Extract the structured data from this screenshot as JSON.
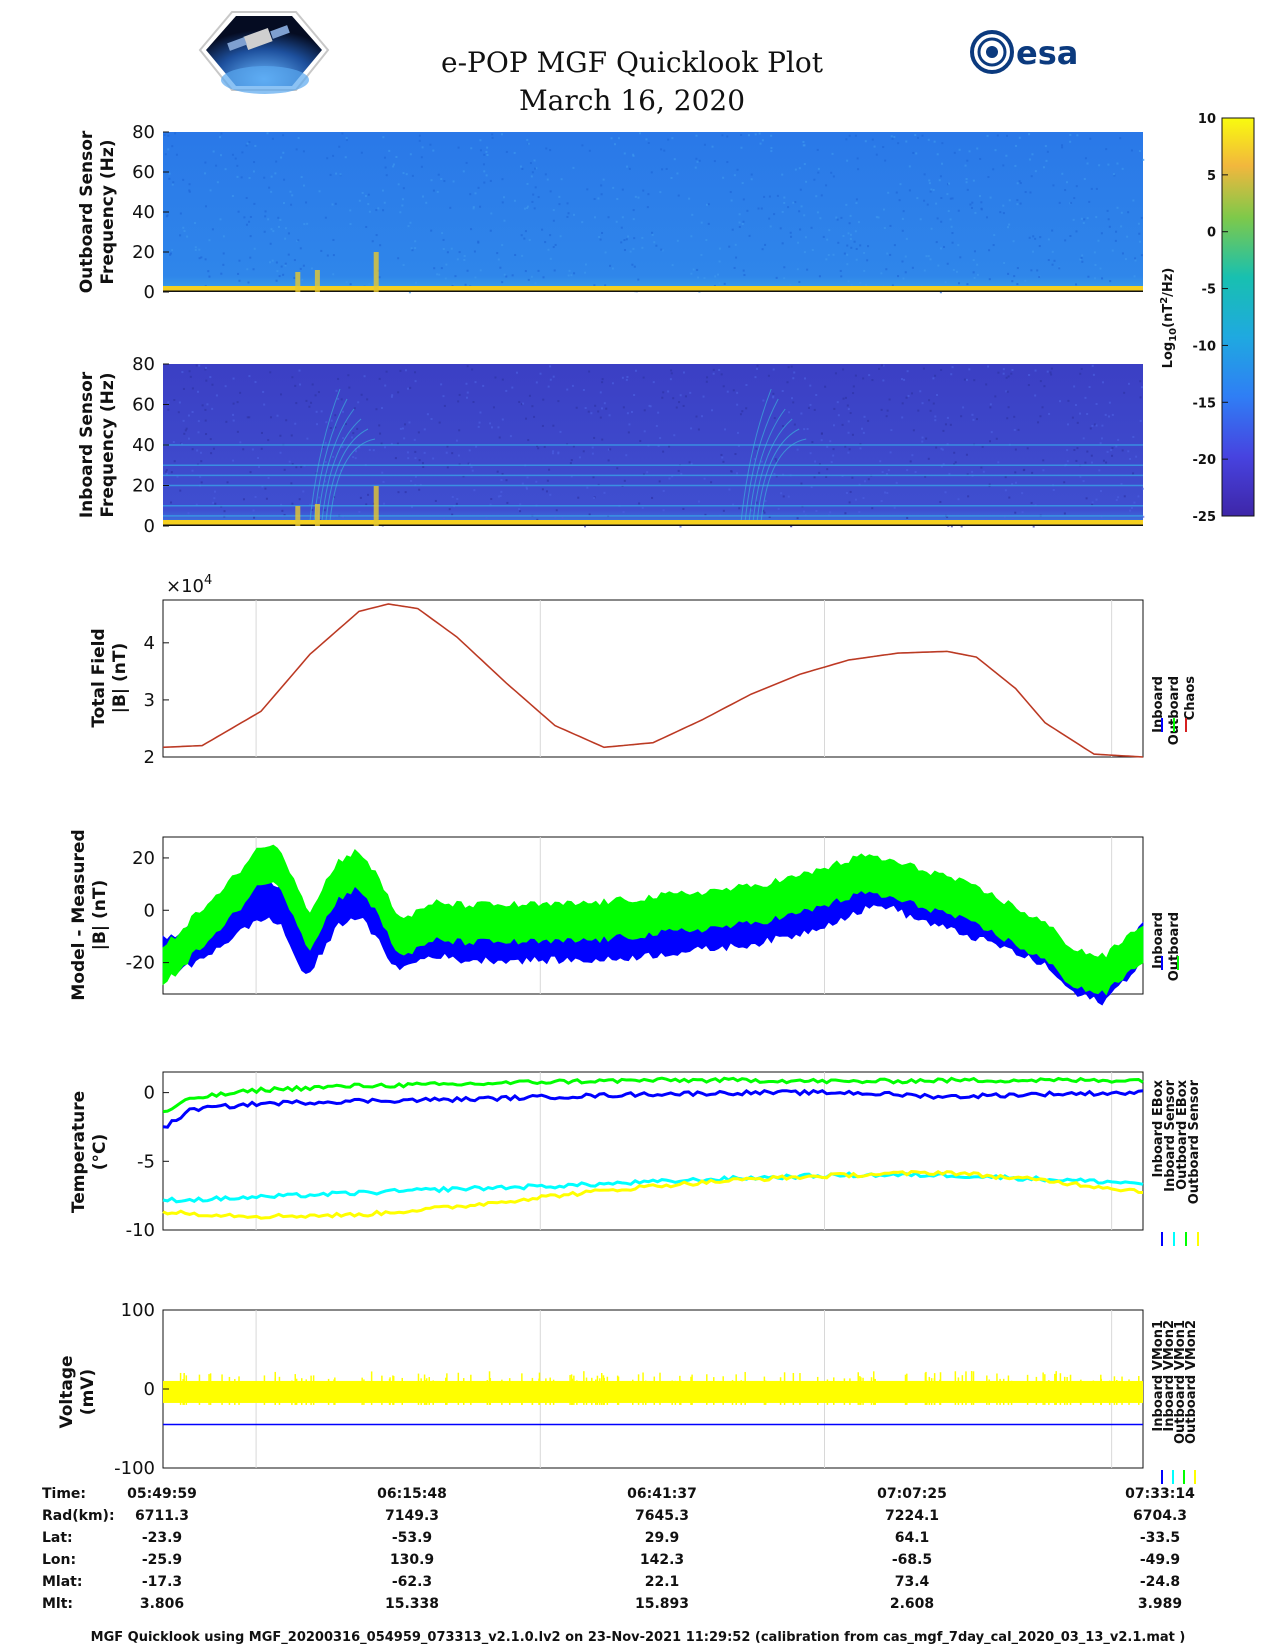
{
  "header": {
    "title": "e-POP MGF Quicklook Plot",
    "date": "March 16, 2020",
    "left_logo_icon": "satellite-logo-icon",
    "right_logo_icon": "esa-logo-icon",
    "right_logo_text": "esa"
  },
  "colorbar": {
    "ticks": [
      "10",
      "5",
      "0",
      "-5",
      "-10",
      "-15",
      "-20",
      "-25"
    ],
    "range": [
      -25,
      10
    ],
    "label_main": "Log",
    "label_sub": "10",
    "label_unit": "(nT",
    "label_sup": "2",
    "label_end": "/Hz)"
  },
  "chart_data": [
    {
      "type": "heatmap",
      "name": "outboard-spectrogram",
      "ylabel_line1": "Outboard Sensor",
      "ylabel_line2": "Frequency (Hz)",
      "yticks": [
        "80",
        "60",
        "40",
        "20",
        "0"
      ],
      "ylim": [
        0,
        80
      ],
      "colors": {
        "background": "#2e82e6",
        "low_band": "#f5d020"
      }
    },
    {
      "type": "heatmap",
      "name": "inboard-spectrogram",
      "ylabel_line1": "Inboard Sensor",
      "ylabel_line2": "Frequency (Hz)",
      "yticks": [
        "80",
        "60",
        "40",
        "20",
        "0"
      ],
      "ylim": [
        0,
        80
      ],
      "colors": {
        "background": "#3a45c8",
        "lines": "#3aa0e8",
        "low_band": "#f5d020"
      }
    },
    {
      "type": "line",
      "name": "total-field",
      "ylabel_line1": "Total Field",
      "ylabel_line2": "|B| (nT)",
      "multiplier_base": "×10",
      "multiplier_exp": "4",
      "yticks": [
        "4",
        "3",
        "2"
      ],
      "ylim": [
        2.0,
        4.75
      ],
      "x": [
        0,
        0.04,
        0.1,
        0.15,
        0.2,
        0.23,
        0.26,
        0.3,
        0.35,
        0.4,
        0.45,
        0.5,
        0.55,
        0.6,
        0.65,
        0.7,
        0.75,
        0.8,
        0.83,
        0.87,
        0.9,
        0.95,
        1.0
      ],
      "series": [
        {
          "name": "Inboard",
          "color": "#0000ff",
          "values": [
            2.17,
            2.2,
            2.8,
            3.8,
            4.55,
            4.68,
            4.6,
            4.1,
            3.3,
            2.55,
            2.17,
            2.25,
            2.65,
            3.1,
            3.45,
            3.7,
            3.82,
            3.85,
            3.75,
            3.2,
            2.6,
            2.05,
            2.0
          ]
        },
        {
          "name": "Outboard",
          "color": "#00ff00",
          "values": [
            2.17,
            2.2,
            2.8,
            3.8,
            4.55,
            4.68,
            4.6,
            4.1,
            3.3,
            2.55,
            2.17,
            2.25,
            2.65,
            3.1,
            3.45,
            3.7,
            3.82,
            3.85,
            3.75,
            3.2,
            2.6,
            2.05,
            2.0
          ]
        },
        {
          "name": "Chaos",
          "color": "#d62020",
          "values": [
            2.17,
            2.2,
            2.8,
            3.8,
            4.55,
            4.68,
            4.6,
            4.1,
            3.3,
            2.55,
            2.17,
            2.25,
            2.65,
            3.1,
            3.45,
            3.7,
            3.82,
            3.85,
            3.75,
            3.2,
            2.6,
            2.05,
            2.0
          ]
        }
      ]
    },
    {
      "type": "line",
      "name": "model-minus-measured",
      "ylabel_line1": "Model - Measured",
      "ylabel_line2": "|B| (nT)",
      "yticks": [
        "20",
        "0",
        "-20"
      ],
      "ylim": [
        -32,
        28
      ],
      "x": [
        0,
        0.03,
        0.06,
        0.1,
        0.12,
        0.14,
        0.15,
        0.16,
        0.18,
        0.2,
        0.22,
        0.24,
        0.26,
        0.28,
        0.3,
        0.35,
        0.4,
        0.45,
        0.5,
        0.55,
        0.6,
        0.65,
        0.7,
        0.72,
        0.74,
        0.76,
        0.8,
        0.85,
        0.9,
        0.93,
        0.96,
        1.0
      ],
      "series": [
        {
          "name": "Inboard",
          "color": "#0000ff",
          "values": [
            -18,
            -14,
            -6,
            4,
            2,
            -15,
            -18,
            -10,
            2,
            5,
            -5,
            -16,
            -12,
            -10,
            -12,
            -12,
            -12,
            -12,
            -10,
            -8,
            -6,
            -2,
            5,
            8,
            9,
            5,
            0,
            -6,
            -14,
            -25,
            -28,
            -12
          ],
          "spread": 7
        },
        {
          "name": "Outboard",
          "color": "#00ff00",
          "values": [
            -22,
            -10,
            0,
            18,
            16,
            0,
            -8,
            0,
            12,
            16,
            5,
            -10,
            -8,
            -4,
            -5,
            -5,
            -5,
            -4,
            -2,
            0,
            2,
            6,
            12,
            14,
            12,
            10,
            6,
            -2,
            -12,
            -22,
            -25,
            -12
          ],
          "spread": 7
        }
      ]
    },
    {
      "type": "line",
      "name": "temperature",
      "ylabel_line1": "Temperature",
      "ylabel_line2": "(°C)",
      "yticks": [
        "0",
        "-5",
        "-10"
      ],
      "ylim": [
        -10,
        1.5
      ],
      "x": [
        0,
        0.03,
        0.1,
        0.2,
        0.3,
        0.4,
        0.5,
        0.6,
        0.7,
        0.8,
        0.9,
        1.0
      ],
      "series": [
        {
          "name": "Inboard EBox",
          "color": "#0000ff",
          "values": [
            -2.6,
            -1.2,
            -0.8,
            -0.6,
            -0.5,
            -0.3,
            -0.1,
            0.0,
            0.0,
            -0.3,
            -0.1,
            0.0
          ]
        },
        {
          "name": "Inboard Sensor",
          "color": "#00ffff",
          "values": [
            -7.8,
            -7.8,
            -7.6,
            -7.3,
            -7.0,
            -6.8,
            -6.5,
            -6.2,
            -6.0,
            -6.0,
            -6.3,
            -6.6
          ]
        },
        {
          "name": "Outboard EBox",
          "color": "#00ff00",
          "values": [
            -1.5,
            -0.4,
            0.2,
            0.5,
            0.6,
            0.8,
            0.9,
            0.9,
            0.8,
            0.9,
            0.9,
            0.9
          ]
        },
        {
          "name": "Outboard Sensor",
          "color": "#ffff00",
          "values": [
            -8.7,
            -8.8,
            -9.0,
            -8.9,
            -8.3,
            -7.5,
            -6.8,
            -6.3,
            -6.0,
            -5.8,
            -6.4,
            -7.2
          ]
        }
      ]
    },
    {
      "type": "line",
      "name": "voltage",
      "ylabel_line1": "Voltage",
      "ylabel_line2": "(mV)",
      "yticks": [
        "100",
        "0",
        "-100"
      ],
      "ylim": [
        -100,
        100
      ],
      "x": [
        0,
        1
      ],
      "series": [
        {
          "name": "Inboard VMon1",
          "color": "#0000ff",
          "values": [
            -45,
            -45
          ]
        },
        {
          "name": "Inboard VMon2",
          "color": "#00ffff",
          "values": [
            -2,
            -2
          ]
        },
        {
          "name": "Outboard VMon1",
          "color": "#00ff00",
          "values": [
            -10,
            -10
          ]
        },
        {
          "name": "Outboard VMon2",
          "color": "#ffff00",
          "values": [
            -5,
            -5
          ]
        }
      ]
    }
  ],
  "axis_table": {
    "row_labels": [
      "Time:",
      "Rad(km):",
      "Lat:",
      "Lon:",
      "Mlat:",
      "Mlt:"
    ],
    "columns": [
      [
        "05:49:59",
        "6711.3",
        "-23.9",
        "-25.9",
        "-17.3",
        "3.806"
      ],
      [
        "06:15:48",
        "7149.3",
        "-53.9",
        "130.9",
        "-62.3",
        "15.338"
      ],
      [
        "06:41:37",
        "7645.3",
        "29.9",
        "142.3",
        "22.1",
        "15.893"
      ],
      [
        "07:07:25",
        "7224.1",
        "64.1",
        "-68.5",
        "73.4",
        "2.608"
      ],
      [
        "07:33:14",
        "6704.3",
        "-33.5",
        "-49.9",
        "-24.8",
        "3.989"
      ]
    ]
  },
  "footer": "MGF Quicklook using MGF_20200316_054959_073313_v2.1.0.lv2 on 23-Nov-2021 11:29:52 (calibration from cas_mgf_7day_cal_2020_03_13_v2.1.mat )"
}
